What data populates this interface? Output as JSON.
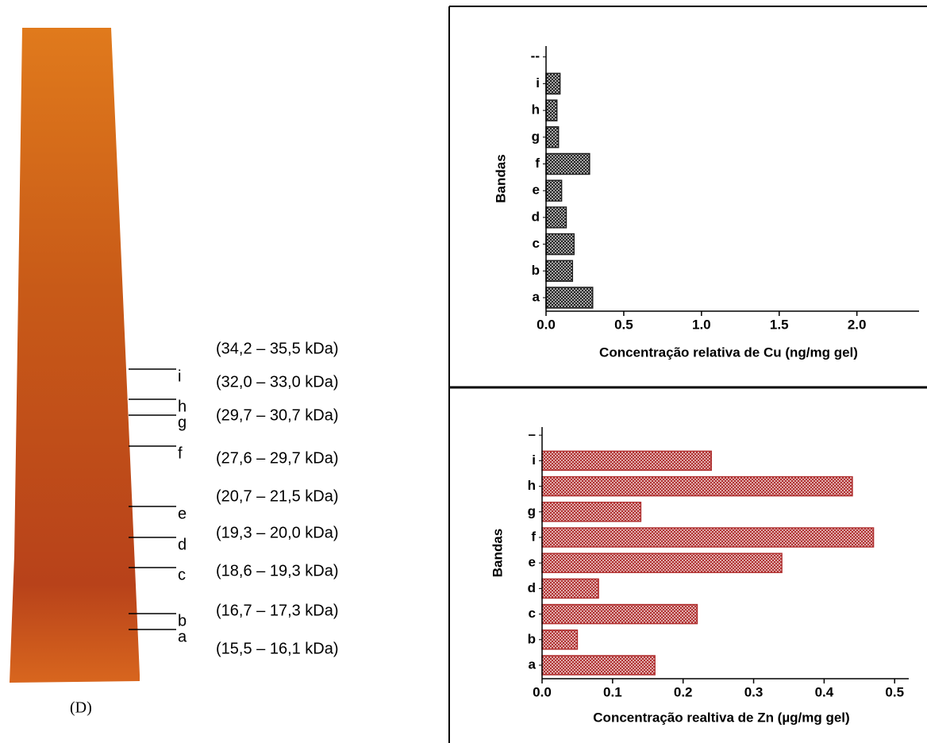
{
  "chart_data": [
    {
      "type": "barh",
      "categories": [
        "a",
        "b",
        "c",
        "d",
        "e",
        "f",
        "g",
        "h",
        "i",
        "--"
      ],
      "values": [
        0.3,
        0.17,
        0.18,
        0.13,
        0.1,
        0.28,
        0.08,
        0.07,
        0.09,
        null
      ],
      "color": "#222222",
      "x_label": "Concentração relativa de Cu (ng/mg gel)",
      "y_label": "Bandas",
      "xlim": [
        0,
        2.4
      ],
      "xticks": [
        {
          "value": 0,
          "label": "0.0"
        },
        {
          "value": 0.5,
          "label": "0.5"
        },
        {
          "value": 1,
          "label": "1.0"
        },
        {
          "value": 1.5,
          "label": "1.5"
        },
        {
          "value": 2,
          "label": "2.0"
        }
      ]
    },
    {
      "type": "barh",
      "categories": [
        "a",
        "b",
        "c",
        "d",
        "e",
        "f",
        "g",
        "h",
        "i",
        "–"
      ],
      "values": [
        0.16,
        0.05,
        0.22,
        0.08,
        0.34,
        0.47,
        0.14,
        0.44,
        0.24,
        null
      ],
      "color": "#b03030",
      "x_label": "Concentração realtiva de Zn (µg/mg gel)",
      "y_label": "Bandas",
      "xlim": [
        0,
        0.52
      ],
      "xticks": [
        {
          "value": 0,
          "label": "0.0"
        },
        {
          "value": 0.1,
          "label": "0.1"
        },
        {
          "value": 0.2,
          "label": "0.2"
        },
        {
          "value": 0.3,
          "label": "0.3"
        },
        {
          "value": 0.4,
          "label": "0.4"
        },
        {
          "value": 0.5,
          "label": "0.5"
        }
      ]
    }
  ],
  "gel": {
    "caption": "(D)",
    "bands": [
      {
        "label": "a",
        "size": "(15,5 – 16,1 kDa)"
      },
      {
        "label": "b",
        "size": "(16,7 – 17,3 kDa)"
      },
      {
        "label": "c",
        "size": "(18,6 – 19,3 kDa)"
      },
      {
        "label": "d",
        "size": "(19,3 – 20,0 kDa)"
      },
      {
        "label": "e",
        "size": "(20,7 – 21,5 kDa)"
      },
      {
        "label": "f",
        "size": "(27,6 – 29,7 kDa)"
      },
      {
        "label": "g",
        "size": "(29,7 – 30,7 kDa)"
      },
      {
        "label": "h",
        "size": "(32,0 – 33,0 kDa)"
      },
      {
        "label": "i",
        "size": "(34,2 – 35,5 kDa)"
      }
    ]
  }
}
